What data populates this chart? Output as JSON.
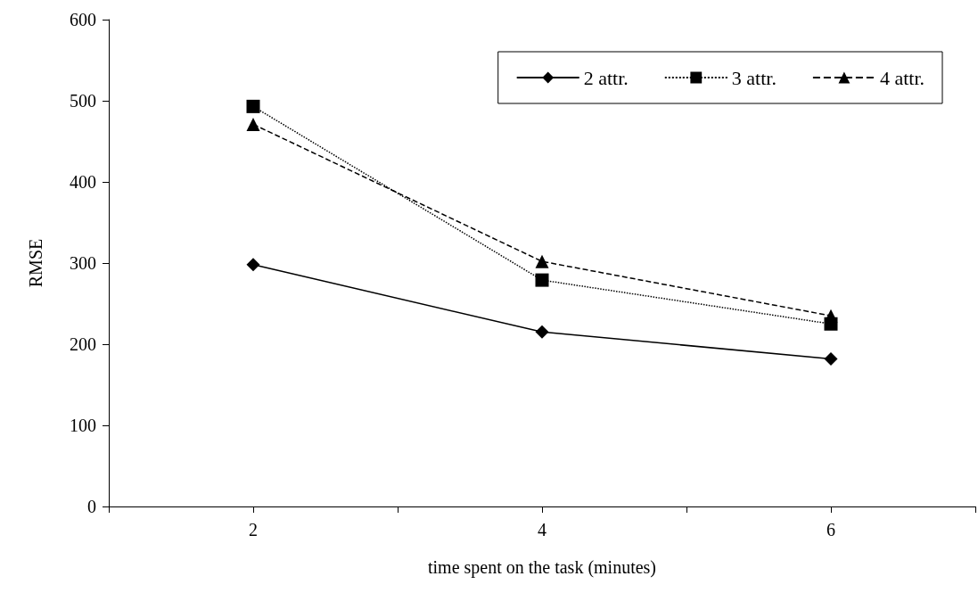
{
  "chart_data": {
    "type": "line",
    "xlabel": "time spent on the task (minutes)",
    "ylabel": "RMSE",
    "x": [
      2,
      4,
      6
    ],
    "xlim": [
      1,
      7
    ],
    "xticks": [
      {
        "value": 1,
        "label": null
      },
      2,
      {
        "value": 3,
        "label": null
      },
      4,
      {
        "value": 5,
        "label": null
      },
      6,
      {
        "value": 7,
        "label": null
      }
    ],
    "ylim": [
      0,
      600
    ],
    "yticks": [
      0,
      100,
      200,
      300,
      400,
      500,
      600
    ],
    "grid": false,
    "legend": "top right",
    "series": [
      {
        "name": "2 attr.",
        "color": "#000000",
        "marker": "diamond",
        "line_style": "solid",
        "values": [
          298,
          215,
          182
        ]
      },
      {
        "name": "3 attr.",
        "color": "#000000",
        "marker": "square",
        "line_style": "dotted",
        "values": [
          493,
          279,
          225
        ]
      },
      {
        "name": "4 attr.",
        "color": "#000000",
        "marker": "triangle",
        "line_style": "dashed",
        "values": [
          471,
          302,
          235
        ]
      }
    ]
  }
}
